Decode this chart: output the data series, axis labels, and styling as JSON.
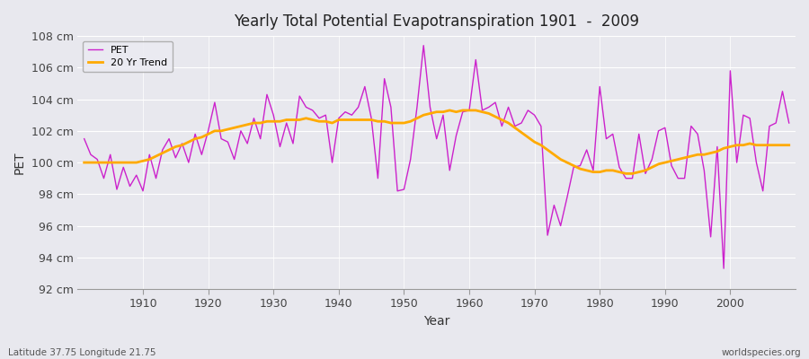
{
  "title": "Yearly Total Potential Evapotranspiration 1901  -  2009",
  "xlabel": "Year",
  "ylabel": "PET",
  "subtitle_left": "Latitude 37.75 Longitude 21.75",
  "subtitle_right": "worldspecies.org",
  "pet_color": "#cc22cc",
  "trend_color": "#ffaa00",
  "background_color": "#e8e8ee",
  "grid_color": "#ffffff",
  "ylim": [
    92,
    108
  ],
  "ytick_labels": [
    "92 cm",
    "94 cm",
    "96 cm",
    "98 cm",
    "100 cm",
    "102 cm",
    "104 cm",
    "106 cm",
    "108 cm"
  ],
  "ytick_values": [
    92,
    94,
    96,
    98,
    100,
    102,
    104,
    106,
    108
  ],
  "years": [
    1901,
    1902,
    1903,
    1904,
    1905,
    1906,
    1907,
    1908,
    1909,
    1910,
    1911,
    1912,
    1913,
    1914,
    1915,
    1916,
    1917,
    1918,
    1919,
    1920,
    1921,
    1922,
    1923,
    1924,
    1925,
    1926,
    1927,
    1928,
    1929,
    1930,
    1931,
    1932,
    1933,
    1934,
    1935,
    1936,
    1937,
    1938,
    1939,
    1940,
    1941,
    1942,
    1943,
    1944,
    1945,
    1946,
    1947,
    1948,
    1949,
    1950,
    1951,
    1952,
    1953,
    1954,
    1955,
    1956,
    1957,
    1958,
    1959,
    1960,
    1961,
    1962,
    1963,
    1964,
    1965,
    1966,
    1967,
    1968,
    1969,
    1970,
    1971,
    1972,
    1973,
    1974,
    1975,
    1976,
    1977,
    1978,
    1979,
    1980,
    1981,
    1982,
    1983,
    1984,
    1985,
    1986,
    1987,
    1988,
    1989,
    1990,
    1991,
    1992,
    1993,
    1994,
    1995,
    1996,
    1997,
    1998,
    1999,
    2000,
    2001,
    2002,
    2003,
    2004,
    2005,
    2006,
    2007,
    2008,
    2009
  ],
  "pet_values": [
    101.5,
    100.5,
    100.2,
    99.0,
    100.5,
    98.3,
    99.7,
    98.5,
    99.2,
    98.2,
    100.5,
    99.0,
    100.8,
    101.5,
    100.3,
    101.2,
    100.0,
    101.8,
    100.5,
    102.0,
    103.8,
    101.5,
    101.3,
    100.2,
    102.0,
    101.2,
    102.8,
    101.5,
    104.3,
    103.0,
    101.0,
    102.5,
    101.2,
    104.2,
    103.5,
    103.3,
    102.8,
    103.0,
    100.0,
    102.8,
    103.2,
    103.0,
    103.5,
    104.8,
    102.8,
    99.0,
    105.3,
    103.5,
    98.2,
    98.3,
    100.2,
    103.5,
    107.4,
    103.5,
    101.5,
    103.0,
    99.5,
    101.7,
    103.2,
    103.3,
    106.5,
    103.3,
    103.5,
    103.8,
    102.3,
    103.5,
    102.3,
    102.5,
    103.3,
    103.0,
    102.3,
    95.4,
    97.3,
    96.0,
    97.8,
    99.7,
    99.8,
    100.8,
    99.5,
    104.8,
    101.5,
    101.8,
    99.7,
    99.0,
    99.0,
    101.8,
    99.3,
    100.2,
    102.0,
    102.2,
    99.8,
    99.0,
    99.0,
    102.3,
    101.8,
    99.5,
    95.3,
    101.0,
    93.3,
    105.8,
    100.0,
    103.0,
    102.8,
    100.0,
    98.2,
    102.3,
    102.5,
    104.5,
    102.5
  ],
  "trend_values_by_year": {
    "1901": 100.0,
    "1902": 100.0,
    "1903": 100.0,
    "1904": 100.0,
    "1905": 100.0,
    "1906": 100.0,
    "1907": 100.0,
    "1908": 100.0,
    "1909": 100.0,
    "1910": 100.1,
    "1911": 100.2,
    "1912": 100.4,
    "1913": 100.6,
    "1914": 100.8,
    "1915": 101.0,
    "1916": 101.1,
    "1917": 101.3,
    "1918": 101.5,
    "1919": 101.6,
    "1920": 101.8,
    "1921": 102.0,
    "1922": 102.0,
    "1923": 102.1,
    "1924": 102.2,
    "1925": 102.3,
    "1926": 102.4,
    "1927": 102.5,
    "1928": 102.5,
    "1929": 102.6,
    "1930": 102.6,
    "1931": 102.6,
    "1932": 102.7,
    "1933": 102.7,
    "1934": 102.7,
    "1935": 102.8,
    "1936": 102.7,
    "1937": 102.6,
    "1938": 102.6,
    "1939": 102.5,
    "1940": 102.7,
    "1941": 102.7,
    "1942": 102.7,
    "1943": 102.7,
    "1944": 102.7,
    "1945": 102.7,
    "1946": 102.6,
    "1947": 102.6,
    "1948": 102.5,
    "1949": 102.5,
    "1950": 102.5,
    "1951": 102.6,
    "1952": 102.8,
    "1953": 103.0,
    "1954": 103.1,
    "1955": 103.2,
    "1956": 103.2,
    "1957": 103.3,
    "1958": 103.2,
    "1959": 103.3,
    "1960": 103.3,
    "1961": 103.3,
    "1962": 103.2,
    "1963": 103.1,
    "1964": 102.9,
    "1965": 102.7,
    "1966": 102.5,
    "1967": 102.2,
    "1968": 101.9,
    "1969": 101.6,
    "1970": 101.3,
    "1971": 101.1,
    "1972": 100.8,
    "1973": 100.5,
    "1974": 100.2,
    "1975": 100.0,
    "1976": 99.8,
    "1977": 99.6,
    "1978": 99.5,
    "1979": 99.4,
    "1980": 99.4,
    "1981": 99.5,
    "1982": 99.5,
    "1983": 99.4,
    "1984": 99.3,
    "1985": 99.3,
    "1986": 99.4,
    "1987": 99.5,
    "1988": 99.7,
    "1989": 99.9,
    "1990": 100.0,
    "1991": 100.1,
    "1992": 100.2,
    "1993": 100.3,
    "1994": 100.4,
    "1995": 100.5,
    "1996": 100.5,
    "1997": 100.6,
    "1998": 100.7,
    "1999": 100.9,
    "2000": 101.0,
    "2001": 101.1,
    "2002": 101.1,
    "2003": 101.2,
    "2004": 101.1,
    "2005": 101.1,
    "2006": 101.1,
    "2007": 101.1,
    "2008": 101.1,
    "2009": 101.1
  }
}
